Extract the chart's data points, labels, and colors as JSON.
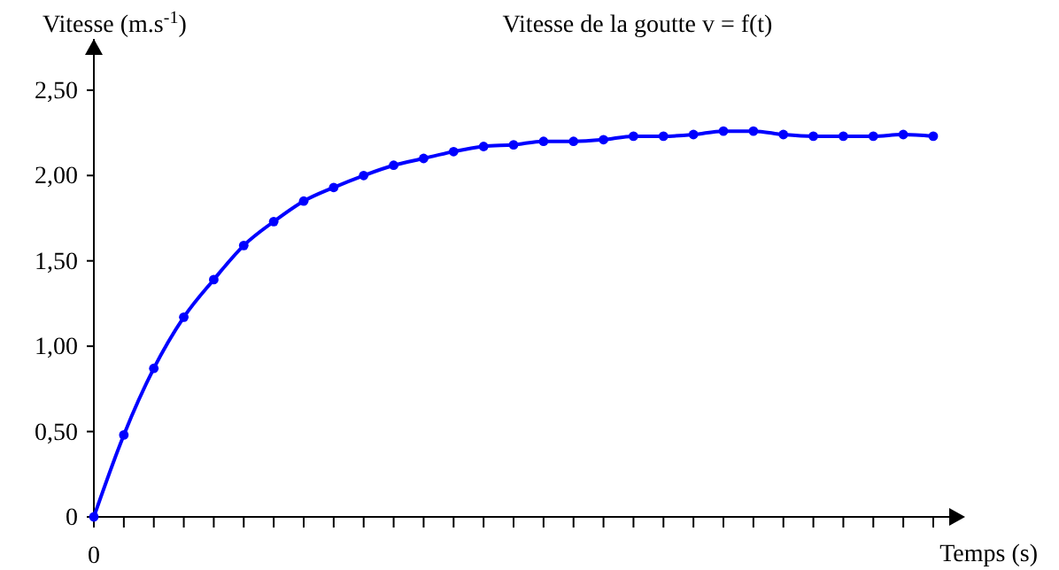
{
  "chart_data": {
    "type": "line",
    "title": "Vitesse de la goutte v = f(t)",
    "xlabel": "Temps (s)",
    "ylabel": "Vitesse (m.s$^{-1}$)",
    "categories": [
      "0",
      null,
      null,
      null,
      null,
      null,
      null,
      null,
      null,
      null,
      null,
      null,
      null,
      null,
      null,
      null,
      null,
      null,
      null,
      null,
      null,
      null,
      null,
      null,
      null,
      null,
      null,
      null,
      null
    ],
    "series": [
      {
        "color": "#0000ff",
        "values": [
          0,
          0.48,
          0.87,
          1.17,
          1.39,
          1.59,
          1.73,
          1.85,
          1.93,
          2.0,
          2.06,
          2.1,
          2.14,
          2.17,
          2.18,
          2.2,
          2.2,
          2.21,
          2.23,
          2.23,
          2.24,
          2.26,
          2.26,
          2.24,
          2.23,
          2.23,
          2.23,
          2.24,
          2.23
        ]
      }
    ],
    "ylim": [
      0,
      2.8
    ],
    "yticks": [
      {
        "value": 0,
        "label": "0"
      },
      {
        "value": 0.5,
        "label": "0,50"
      },
      {
        "value": 1,
        "label": "1,00"
      },
      {
        "value": 1.5,
        "label": "1,50"
      },
      {
        "value": 2,
        "label": "2,00"
      },
      {
        "value": 2.5,
        "label": "2,50"
      }
    ],
    "grid": false,
    "legend": false,
    "marker": "circle",
    "line_style": "solid"
  }
}
